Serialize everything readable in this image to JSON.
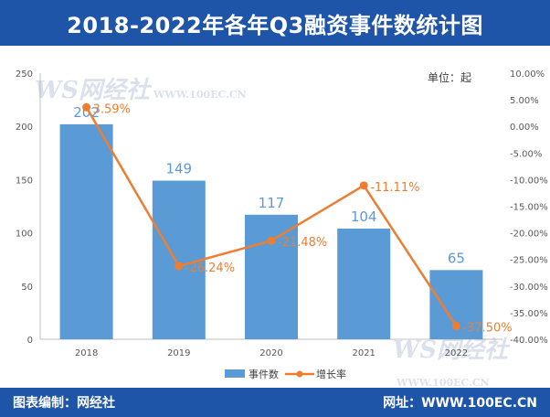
{
  "header": {
    "title": "2018-2022年各年Q3融资事件数统计图"
  },
  "unit_note": "单位：起",
  "footer": {
    "left": "图表编制：网经社",
    "right": "网址：WWW.100EC.CN"
  },
  "watermark": {
    "logo": "WS网经社",
    "domain": "WWW.100EC.CN"
  },
  "colors": {
    "header_bg": "#1f55a8",
    "bar": "#5b9bd5",
    "line": "#ed7d31",
    "axis_text": "#595959",
    "grid": "#d9d9d9"
  },
  "chart_data": {
    "type": "bar",
    "categories": [
      "2018",
      "2019",
      "2020",
      "2021",
      "2022"
    ],
    "series": [
      {
        "name": "事件数",
        "type": "bar",
        "axis": "left",
        "values": [
          202,
          149,
          117,
          104,
          65
        ],
        "labels": [
          "202",
          "149",
          "117",
          "104",
          "65"
        ]
      },
      {
        "name": "增长率",
        "type": "line",
        "axis": "right",
        "values": [
          3.59,
          -26.24,
          -21.48,
          -11.11,
          -37.5
        ],
        "labels": [
          "3.59%",
          "-26.24%",
          "-21.48%",
          "-11.11%",
          "-37.50%"
        ]
      }
    ],
    "y_left": {
      "lim": [
        0,
        250
      ],
      "ticks": [
        "0",
        "50",
        "100",
        "150",
        "200",
        "250"
      ],
      "tick_values": [
        0,
        50,
        100,
        150,
        200,
        250
      ]
    },
    "y_right": {
      "lim": [
        -40,
        10
      ],
      "ticks": [
        "10.00%",
        "5.00%",
        "0.00%",
        "-5.00%",
        "-10.00%",
        "-15.00%",
        "-20.00%",
        "-25.00%",
        "-30.00%",
        "-35.00%",
        "-40.00%"
      ],
      "tick_values": [
        10,
        5,
        0,
        -5,
        -10,
        -15,
        -20,
        -25,
        -30,
        -35,
        -40
      ]
    },
    "grid": false,
    "legend_position": "bottom"
  }
}
